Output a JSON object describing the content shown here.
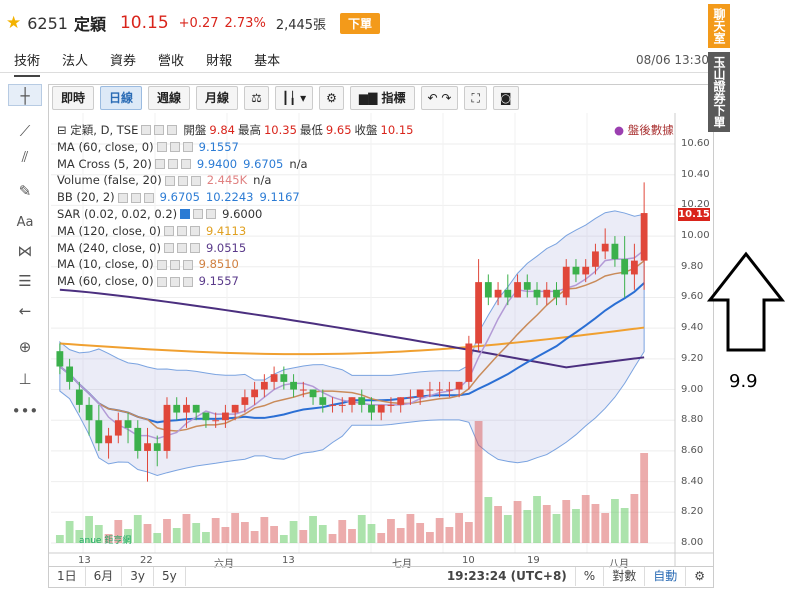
{
  "header": {
    "code": "6251",
    "name": "定穎",
    "price": "10.15",
    "change": "+0.27",
    "percent": "2.73%",
    "volume": "2,445張",
    "order_label": "下單"
  },
  "tabs": [
    "技術",
    "法人",
    "資券",
    "營收",
    "財報",
    "基本"
  ],
  "datetime": "08/06 13:30",
  "toolbar": {
    "intraday": "即時",
    "daily": "日線",
    "weekly": "週線",
    "monthly": "月線",
    "indicator": "指標"
  },
  "legend": {
    "main": "定穎, D, TSE",
    "open_label": "開盤",
    "open": "9.84",
    "high_label": "最高",
    "high": "10.35",
    "low_label": "最低",
    "low": "9.65",
    "close_label": "收盤",
    "close": "10.15",
    "rows": [
      {
        "label": "MA (60, close, 0)",
        "values": [
          "9.1557"
        ],
        "color": "#2b7bd4"
      },
      {
        "label": "MA Cross (5, 20)",
        "values": [
          "9.9400",
          "9.6705",
          "n/a"
        ],
        "color": "#2b7bd4"
      },
      {
        "label": "Volume (false, 20)",
        "values": [
          "2.445K",
          "n/a"
        ],
        "color": "#e08080"
      },
      {
        "label": "BB (20, 2)",
        "values": [
          "9.6705",
          "10.2243",
          "9.1167"
        ],
        "color": "#2b7bd4"
      },
      {
        "label": "SAR (0.02, 0.02, 0.2)",
        "values": [
          "9.6000"
        ],
        "color": "#333333"
      },
      {
        "label": "MA (120, close, 0)",
        "values": [
          "9.4113"
        ],
        "color": "#e0a020"
      },
      {
        "label": "MA (240, close, 0)",
        "values": [
          "9.0515"
        ],
        "color": "#5a3a8a"
      },
      {
        "label": "MA (10, close, 0)",
        "values": [
          "9.8510"
        ],
        "color": "#d08040"
      },
      {
        "label": "MA (60, close, 0)",
        "values": [
          "9.1557"
        ],
        "color": "#5a3a8a"
      }
    ]
  },
  "after_close": "盤後數據",
  "price_axis": [
    "10.60",
    "10.40",
    "10.20",
    "10.00",
    "9.80",
    "9.60",
    "9.40",
    "9.20",
    "9.00",
    "8.80",
    "8.60",
    "8.40",
    "8.20",
    "8.00"
  ],
  "last_price_tag": "10.15",
  "date_axis": [
    "13",
    "22",
    "六月",
    "13",
    "七月",
    "10",
    "19",
    "八月"
  ],
  "bottom": {
    "r1d": "1日",
    "r6m": "6月",
    "r3y": "3y",
    "r5y": "5y",
    "time": "19:23:24 (UTC+8)",
    "pct": "%",
    "log": "對數",
    "auto": "自動"
  },
  "sidebar": {
    "chat": "聊天室",
    "broker": "玉山證券下單"
  },
  "annotation_label": "9.9",
  "watermark": "anue 鉅亨網",
  "chart_data": {
    "type": "candlestick",
    "ylim": [
      8.0,
      10.6
    ],
    "candles": [
      [
        9.25,
        9.3,
        9.1,
        9.15
      ],
      [
        9.15,
        9.2,
        9.0,
        9.05
      ],
      [
        9.0,
        9.05,
        8.85,
        8.9
      ],
      [
        8.9,
        8.95,
        8.7,
        8.8
      ],
      [
        8.8,
        8.9,
        8.6,
        8.65
      ],
      [
        8.65,
        8.75,
        8.55,
        8.7
      ],
      [
        8.7,
        8.85,
        8.65,
        8.8
      ],
      [
        8.8,
        8.85,
        8.65,
        8.75
      ],
      [
        8.75,
        8.8,
        8.55,
        8.6
      ],
      [
        8.6,
        8.75,
        8.4,
        8.65
      ],
      [
        8.65,
        8.7,
        8.5,
        8.6
      ],
      [
        8.6,
        8.95,
        8.55,
        8.9
      ],
      [
        8.9,
        8.95,
        8.8,
        8.85
      ],
      [
        8.85,
        8.95,
        8.75,
        8.9
      ],
      [
        8.9,
        8.9,
        8.8,
        8.85
      ],
      [
        8.85,
        8.85,
        8.75,
        8.8
      ],
      [
        8.8,
        8.85,
        8.75,
        8.8
      ],
      [
        8.8,
        8.9,
        8.75,
        8.85
      ],
      [
        8.85,
        8.9,
        8.8,
        8.9
      ],
      [
        8.9,
        9.0,
        8.85,
        8.95
      ],
      [
        8.95,
        9.05,
        8.9,
        9.0
      ],
      [
        9.0,
        9.1,
        8.95,
        9.05
      ],
      [
        9.05,
        9.15,
        9.0,
        9.1
      ],
      [
        9.1,
        9.15,
        9.0,
        9.05
      ],
      [
        9.05,
        9.1,
        8.95,
        9.0
      ],
      [
        9.0,
        9.05,
        8.95,
        9.0
      ],
      [
        9.0,
        9.0,
        8.9,
        8.95
      ],
      [
        8.95,
        9.0,
        8.85,
        8.9
      ],
      [
        8.9,
        8.95,
        8.85,
        8.9
      ],
      [
        8.9,
        8.95,
        8.85,
        8.9
      ],
      [
        8.9,
        8.95,
        8.85,
        8.95
      ],
      [
        8.95,
        9.0,
        8.85,
        8.9
      ],
      [
        8.9,
        8.95,
        8.8,
        8.85
      ],
      [
        8.85,
        8.9,
        8.8,
        8.9
      ],
      [
        8.9,
        8.95,
        8.85,
        8.9
      ],
      [
        8.9,
        8.95,
        8.85,
        8.95
      ],
      [
        8.95,
        9.0,
        8.9,
        8.95
      ],
      [
        8.95,
        9.0,
        8.9,
        9.0
      ],
      [
        9.0,
        9.05,
        8.95,
        9.0
      ],
      [
        9.0,
        9.05,
        8.95,
        9.0
      ],
      [
        9.0,
        9.05,
        8.95,
        9.0
      ],
      [
        9.0,
        9.05,
        8.95,
        9.05
      ],
      [
        9.05,
        9.35,
        9.0,
        9.3
      ],
      [
        9.3,
        9.85,
        9.25,
        9.7
      ],
      [
        9.7,
        9.75,
        9.55,
        9.6
      ],
      [
        9.6,
        9.7,
        9.55,
        9.65
      ],
      [
        9.65,
        9.75,
        9.55,
        9.6
      ],
      [
        9.6,
        9.75,
        9.6,
        9.7
      ],
      [
        9.7,
        9.75,
        9.6,
        9.65
      ],
      [
        9.65,
        9.7,
        9.55,
        9.6
      ],
      [
        9.6,
        9.7,
        9.55,
        9.65
      ],
      [
        9.65,
        9.7,
        9.55,
        9.6
      ],
      [
        9.6,
        9.85,
        9.55,
        9.8
      ],
      [
        9.8,
        9.85,
        9.7,
        9.75
      ],
      [
        9.75,
        9.85,
        9.7,
        9.8
      ],
      [
        9.8,
        9.95,
        9.75,
        9.9
      ],
      [
        9.9,
        10.05,
        9.85,
        9.95
      ],
      [
        9.95,
        10.0,
        9.8,
        9.85
      ],
      [
        9.85,
        10.0,
        9.6,
        9.75
      ],
      [
        9.75,
        9.95,
        9.65,
        9.84
      ],
      [
        9.84,
        10.35,
        9.65,
        10.15
      ]
    ]
  }
}
